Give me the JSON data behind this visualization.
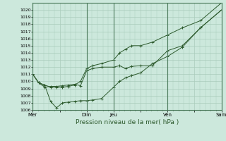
{
  "xlabel": "Pression niveau de la mer( hPa )",
  "ylim": [
    1006,
    1021
  ],
  "yticks": [
    1006,
    1007,
    1008,
    1009,
    1010,
    1011,
    1012,
    1013,
    1014,
    1015,
    1016,
    1017,
    1018,
    1019,
    1020
  ],
  "xtick_labels": [
    "Mer",
    "",
    "Dim",
    "Jeu",
    "",
    "Ven",
    "",
    "Sam"
  ],
  "xtick_positions": [
    0,
    1,
    2,
    3,
    4,
    5,
    6,
    7
  ],
  "vlines": [
    0,
    2,
    3,
    5,
    7
  ],
  "bg_color": "#cce8dc",
  "grid_color": "#b0d8c8",
  "line_color": "#2d5a2d",
  "series1_x": [
    0,
    0.22,
    0.44,
    0.66,
    0.88,
    1.1,
    1.32,
    1.55,
    1.77,
    2.0,
    2.22,
    2.55,
    3.0,
    3.22,
    3.44,
    3.66,
    4.0,
    4.44,
    5.0,
    5.55,
    6.22,
    7.0
  ],
  "series1_y": [
    1011.0,
    1009.8,
    1009.2,
    1009.3,
    1009.3,
    1009.4,
    1009.5,
    1009.6,
    1009.4,
    1011.5,
    1011.8,
    1012.0,
    1012.0,
    1012.2,
    1011.8,
    1012.1,
    1012.2,
    1012.2,
    1014.3,
    1015.0,
    1017.5,
    1020.0
  ],
  "series2_x": [
    0,
    0.22,
    0.44,
    0.66,
    0.88,
    1.1,
    1.32,
    1.55,
    1.77,
    2.0,
    2.22,
    2.55,
    3.0,
    3.22,
    3.44,
    3.66,
    4.0,
    4.44,
    5.0,
    5.55,
    6.22,
    7.0
  ],
  "series2_y": [
    1011.0,
    1009.8,
    1009.5,
    1007.2,
    1006.3,
    1007.0,
    1007.1,
    1007.2,
    1007.3,
    1007.3,
    1007.4,
    1007.6,
    1009.2,
    1010.0,
    1010.5,
    1010.8,
    1011.2,
    1012.5,
    1013.5,
    1014.8,
    1017.5,
    1020.0
  ],
  "series3_x": [
    0,
    0.22,
    0.44,
    0.66,
    0.88,
    1.1,
    1.32,
    1.55,
    1.77,
    2.0,
    2.22,
    2.55,
    3.0,
    3.22,
    3.44,
    3.66,
    4.0,
    4.44,
    5.0,
    5.55,
    6.22,
    7.0
  ],
  "series3_y": [
    1011.0,
    1009.8,
    1009.5,
    1009.2,
    1009.2,
    1009.2,
    1009.3,
    1009.5,
    1010.0,
    1011.8,
    1012.2,
    1012.5,
    1013.0,
    1014.0,
    1014.5,
    1015.0,
    1015.0,
    1015.5,
    1016.5,
    1017.5,
    1018.5,
    1021.0
  ]
}
